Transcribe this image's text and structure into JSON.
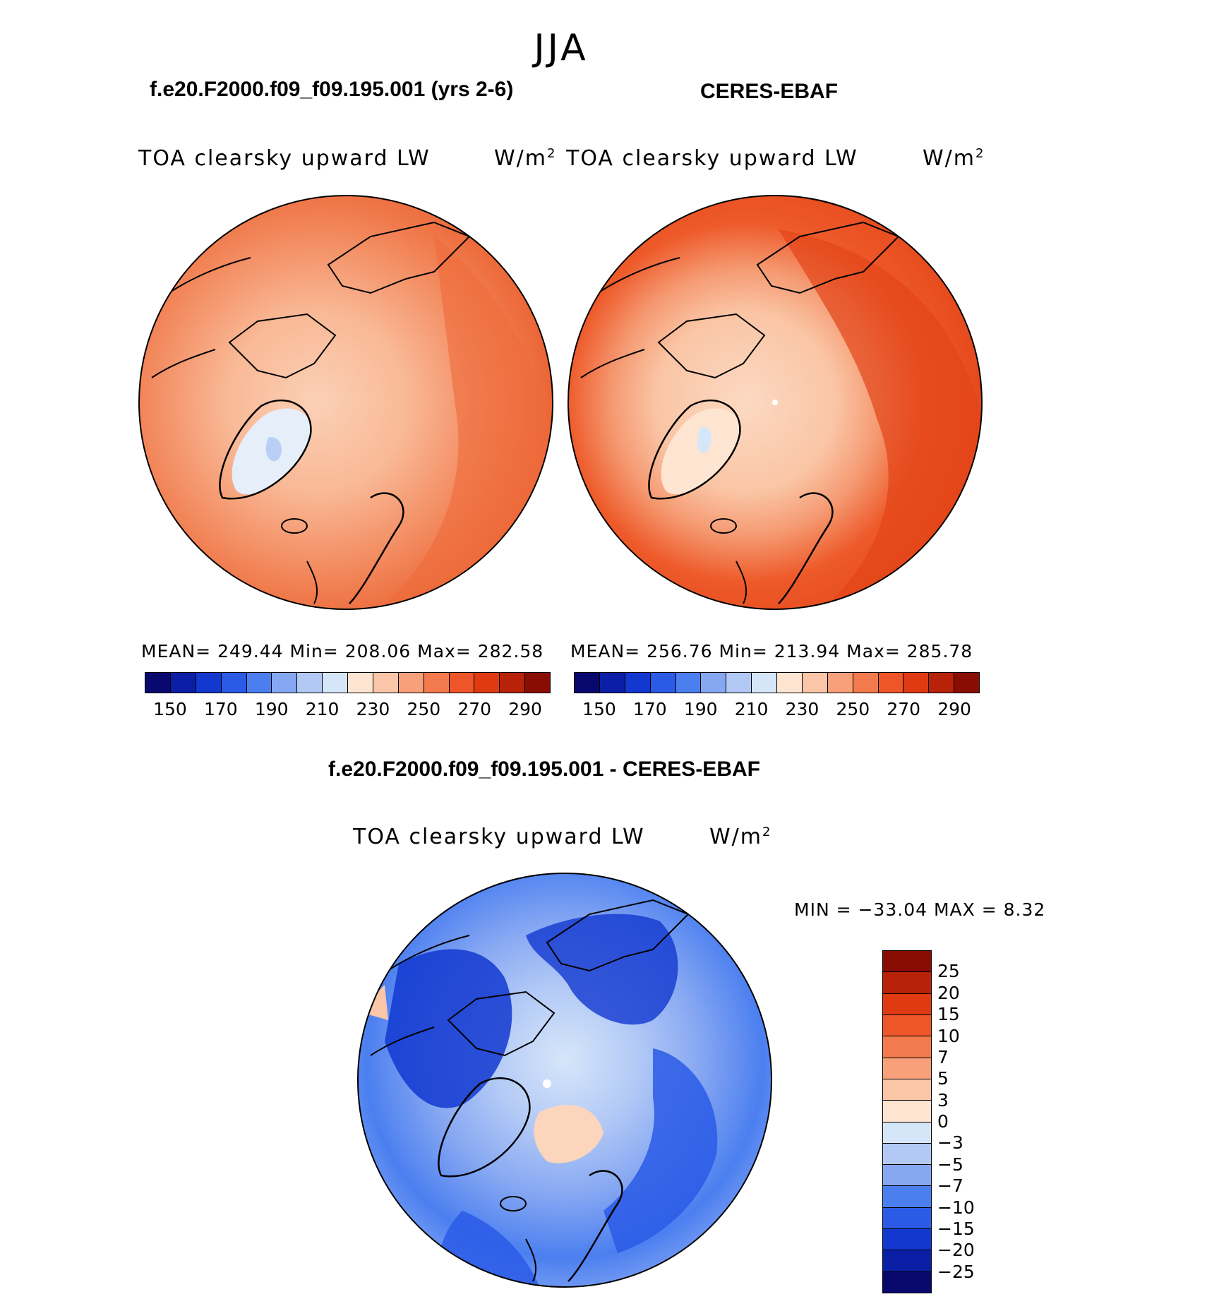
{
  "season": "JJA",
  "panels": [
    {
      "case_title": "f.e20.F2000.f09_f09.195.001 (yrs 2-6)",
      "variable": "TOA clearsky upward LW",
      "units": "W/m",
      "units_sup": "2",
      "stats": "MEAN= 249.44   Min= 208.06   Max= 282.58"
    },
    {
      "case_title": "CERES-EBAF",
      "variable": "TOA clearsky upward LW",
      "units": "W/m",
      "units_sup": "2",
      "stats": "MEAN= 256.76   Min= 213.94   Max= 285.78"
    },
    {
      "case_title": "f.e20.F2000.f09_f09.195.001 - CERES-EBAF",
      "variable": "TOA clearsky upward LW",
      "units": "W/m",
      "units_sup": "2",
      "stats": "MIN = −33.04 MAX =    8.32"
    }
  ],
  "colorbar_abs": {
    "labels": [
      "150",
      "170",
      "190",
      "210",
      "230",
      "250",
      "270",
      "290"
    ],
    "colors": [
      "#08086e",
      "#0b1fa6",
      "#1238d0",
      "#2a5ae6",
      "#4b7ff0",
      "#86a7f2",
      "#b2c9f6",
      "#d6e6f9",
      "#fde5d2",
      "#fbc5a8",
      "#f8a07a",
      "#f27a4c",
      "#ee5528",
      "#e03a12",
      "#b82208",
      "#8a0d04"
    ]
  },
  "colorbar_diff": {
    "labels": [
      "25",
      "20",
      "15",
      "10",
      "7",
      "5",
      "3",
      "0",
      "−3",
      "−5",
      "−7",
      "−10",
      "−15",
      "−20",
      "−25"
    ],
    "colors": [
      "#8a0d04",
      "#b82208",
      "#e03a12",
      "#ee5528",
      "#f27a4c",
      "#f8a07a",
      "#fbc5a8",
      "#fde5d2",
      "#d6e6f9",
      "#b2c9f6",
      "#86a7f2",
      "#4b7ff0",
      "#2a5ae6",
      "#1238d0",
      "#0b1fa6",
      "#08086e"
    ]
  }
}
